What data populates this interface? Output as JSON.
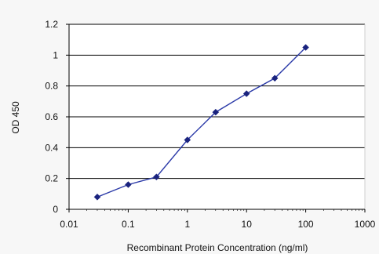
{
  "chart_data": {
    "type": "line",
    "title": "",
    "xlabel": "Recombinant Protein Concentration (ng/ml)",
    "ylabel": "OD 450",
    "x_scale": "log",
    "xlim": [
      0.01,
      1000
    ],
    "ylim": [
      0,
      1.2
    ],
    "x_tick_labels": [
      "0.01",
      "0.1",
      "1",
      "10",
      "100",
      "1000"
    ],
    "y_tick_labels": [
      "0",
      "0.2",
      "0.4",
      "0.6",
      "0.8",
      "1",
      "1.2"
    ],
    "grid": "horizontal",
    "legend": "none",
    "series": [
      {
        "x": [
          0.03,
          0.1,
          0.3,
          1,
          3,
          10,
          30,
          100
        ],
        "y": [
          0.08,
          0.16,
          0.21,
          0.45,
          0.63,
          0.75,
          0.85,
          1.05
        ],
        "color": "#2b3aa8",
        "marker": "diamond"
      }
    ]
  },
  "colors": {
    "plot_background": "#ffffff",
    "page_background": "#f7f7f7",
    "grid": "#000000",
    "series": "#2b3aa8"
  }
}
